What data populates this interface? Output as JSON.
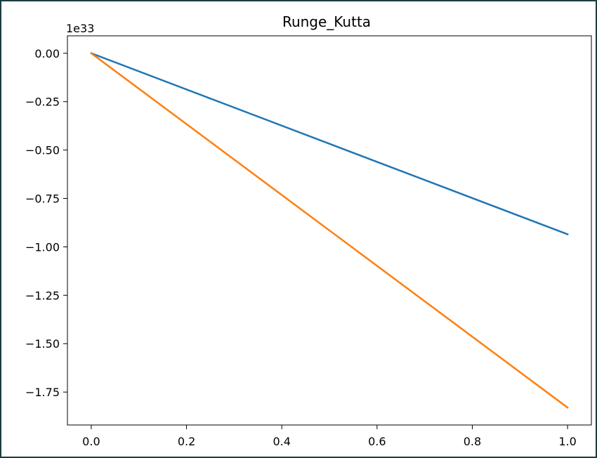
{
  "chart_data": {
    "type": "line",
    "title": "Runge_Kutta",
    "xlabel": "",
    "ylabel": "",
    "y_offset_label": "1e33",
    "xlim": [
      -0.05,
      1.05
    ],
    "ylim": [
      -1.92,
      0.09
    ],
    "x_ticks": [
      0.0,
      0.2,
      0.4,
      0.6,
      0.8,
      1.0
    ],
    "x_tick_labels": [
      "0.0",
      "0.2",
      "0.4",
      "0.6",
      "0.8",
      "1.0"
    ],
    "y_ticks": [
      0.0,
      -0.25,
      -0.5,
      -0.75,
      -1.0,
      -1.25,
      -1.5,
      -1.75
    ],
    "y_tick_labels": [
      "0.00",
      "−0.25",
      "−0.50",
      "−0.75",
      "−1.00",
      "−1.25",
      "−1.50",
      "−1.75"
    ],
    "grid": false,
    "series": [
      {
        "color": "#1f77b4",
        "x": [
          0.0,
          1.0
        ],
        "y": [
          0.0,
          -0.935
        ]
      },
      {
        "color": "#ff7f0e",
        "x": [
          0.0,
          1.0
        ],
        "y": [
          0.0,
          -1.83
        ]
      }
    ]
  }
}
